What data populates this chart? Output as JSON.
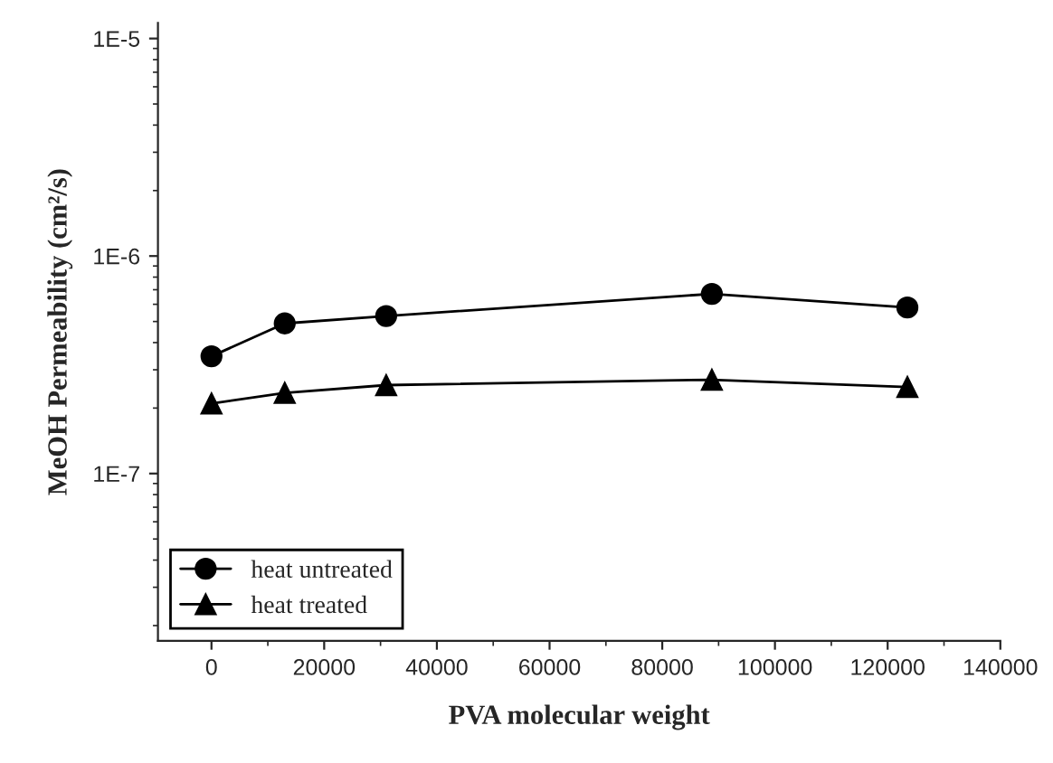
{
  "chart_data": {
    "type": "line",
    "xlabel": "PVA molecular weight",
    "ylabel": "MeOH Permeability (cm²/s)",
    "x": [
      0,
      13000,
      31000,
      88800,
      123500
    ],
    "series": [
      {
        "name": "heat untreated",
        "color": "#000000",
        "marker": "circle",
        "values": [
          3.46e-07,
          4.9e-07,
          5.3e-07,
          6.7e-07,
          5.8e-07
        ]
      },
      {
        "name": "heat treated",
        "color": "#000000",
        "marker": "triangle",
        "values": [
          2.1e-07,
          2.35e-07,
          2.55e-07,
          2.7e-07,
          2.5e-07
        ]
      }
    ],
    "log": "y",
    "xlim": [
      -9500,
      140000
    ],
    "ylim": [
      1.7e-08,
      1.18e-05
    ],
    "xticks": [
      0,
      20000,
      40000,
      60000,
      80000,
      100000,
      120000,
      140000
    ],
    "yticks": [
      {
        "value": 1e-07,
        "label": "1E-7"
      },
      {
        "value": 1e-06,
        "label": "1E-6"
      },
      {
        "value": 1e-05,
        "label": "1E-5"
      }
    ],
    "grid": false,
    "legend": "bottom left",
    "line_style": "solid"
  }
}
